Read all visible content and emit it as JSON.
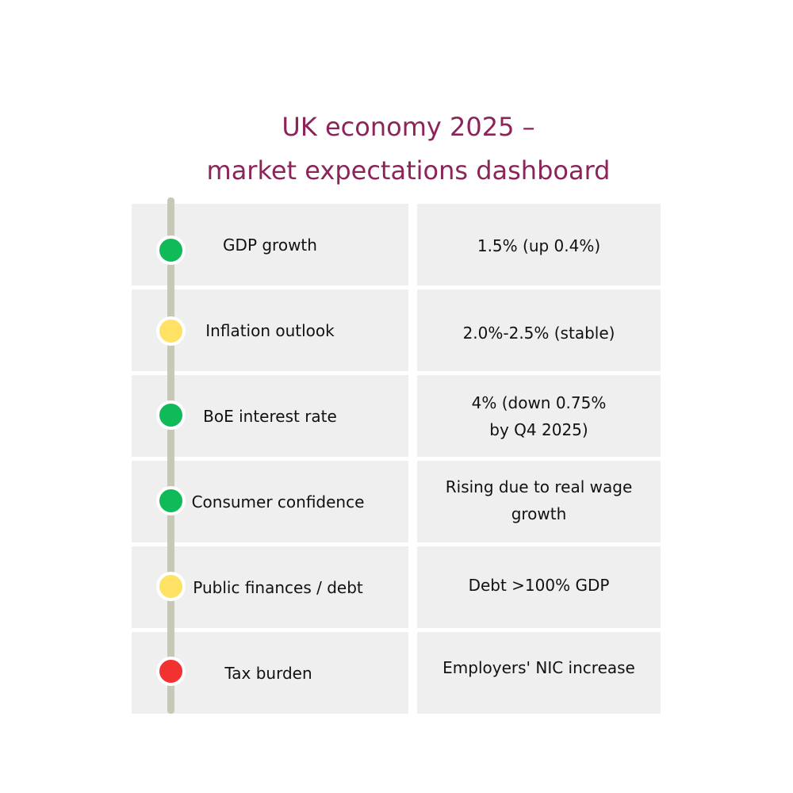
{
  "title": {
    "line1": "UK economy 2025 –",
    "line2": "market expectations dashboard"
  },
  "colors": {
    "title": "#8b2458",
    "cell_bg": "#efefef",
    "timeline": "#c8c8b6",
    "green": "#0fba59",
    "yellow": "#ffe263",
    "red": "#f43131"
  },
  "rows": [
    {
      "indicator": "GDP growth",
      "value": "1.5% (up 0.4%)",
      "status": "green"
    },
    {
      "indicator": "Inflation outlook",
      "value": "2.0%-2.5% (stable)",
      "status": "yellow"
    },
    {
      "indicator": "BoE interest rate",
      "value": "4% (down 0.75%\nby Q4 2025)",
      "status": "green"
    },
    {
      "indicator": "Consumer confidence",
      "value": "Rising due to real wage\ngrowth",
      "status": "green"
    },
    {
      "indicator": "Public finances / debt",
      "value": "Debt >100% GDP",
      "status": "yellow"
    },
    {
      "indicator": "Tax burden",
      "value": "Employers' NIC increase",
      "status": "red"
    }
  ]
}
